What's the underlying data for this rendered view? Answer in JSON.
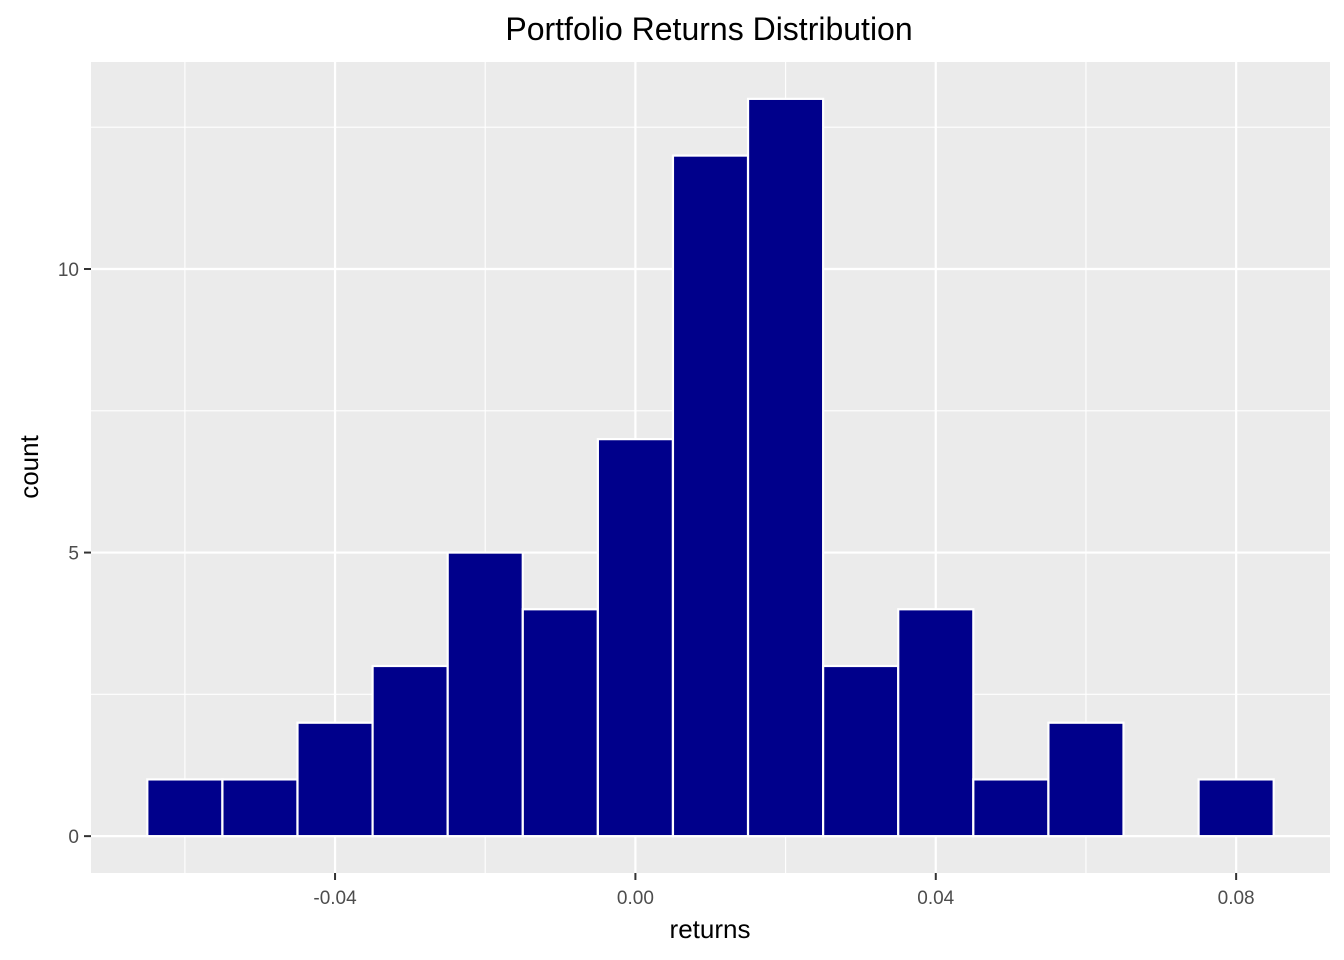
{
  "chart_data": {
    "type": "histogram",
    "title": "Portfolio Returns Distribution",
    "xlabel": "returns",
    "ylabel": "count",
    "fill_color": "#00008b",
    "outline_color": "#ffffff",
    "panel_color": "#ebebeb",
    "bin_width": 0.01,
    "bins": [
      {
        "start": -0.065,
        "end": -0.055,
        "count": 1
      },
      {
        "start": -0.055,
        "end": -0.045,
        "count": 1
      },
      {
        "start": -0.045,
        "end": -0.035,
        "count": 2
      },
      {
        "start": -0.035,
        "end": -0.025,
        "count": 3
      },
      {
        "start": -0.025,
        "end": -0.015,
        "count": 5
      },
      {
        "start": -0.015,
        "end": -0.005,
        "count": 4
      },
      {
        "start": -0.005,
        "end": 0.005,
        "count": 7
      },
      {
        "start": 0.005,
        "end": 0.015,
        "count": 12
      },
      {
        "start": 0.015,
        "end": 0.025,
        "count": 13
      },
      {
        "start": 0.025,
        "end": 0.035,
        "count": 3
      },
      {
        "start": 0.035,
        "end": 0.045,
        "count": 4
      },
      {
        "start": 0.045,
        "end": 0.055,
        "count": 1
      },
      {
        "start": 0.055,
        "end": 0.065,
        "count": 2
      },
      {
        "start": 0.065,
        "end": 0.075,
        "count": 0
      },
      {
        "start": 0.075,
        "end": 0.085,
        "count": 1
      }
    ],
    "xlim": [
      -0.0725,
      0.0925
    ],
    "ylim": [
      -0.65,
      13.65
    ],
    "x_ticks": [
      {
        "value": -0.04,
        "label": "-0.04"
      },
      {
        "value": 0.0,
        "label": "0.00"
      },
      {
        "value": 0.04,
        "label": "0.04"
      },
      {
        "value": 0.08,
        "label": "0.08"
      }
    ],
    "x_minor_ticks": [
      -0.06,
      -0.02,
      0.02,
      0.06
    ],
    "y_ticks": [
      {
        "value": 0,
        "label": "0"
      },
      {
        "value": 5,
        "label": "5"
      },
      {
        "value": 10,
        "label": "10"
      }
    ],
    "y_minor_ticks": [
      2.5,
      7.5,
      12.5
    ],
    "grid": true,
    "legend": "none"
  }
}
